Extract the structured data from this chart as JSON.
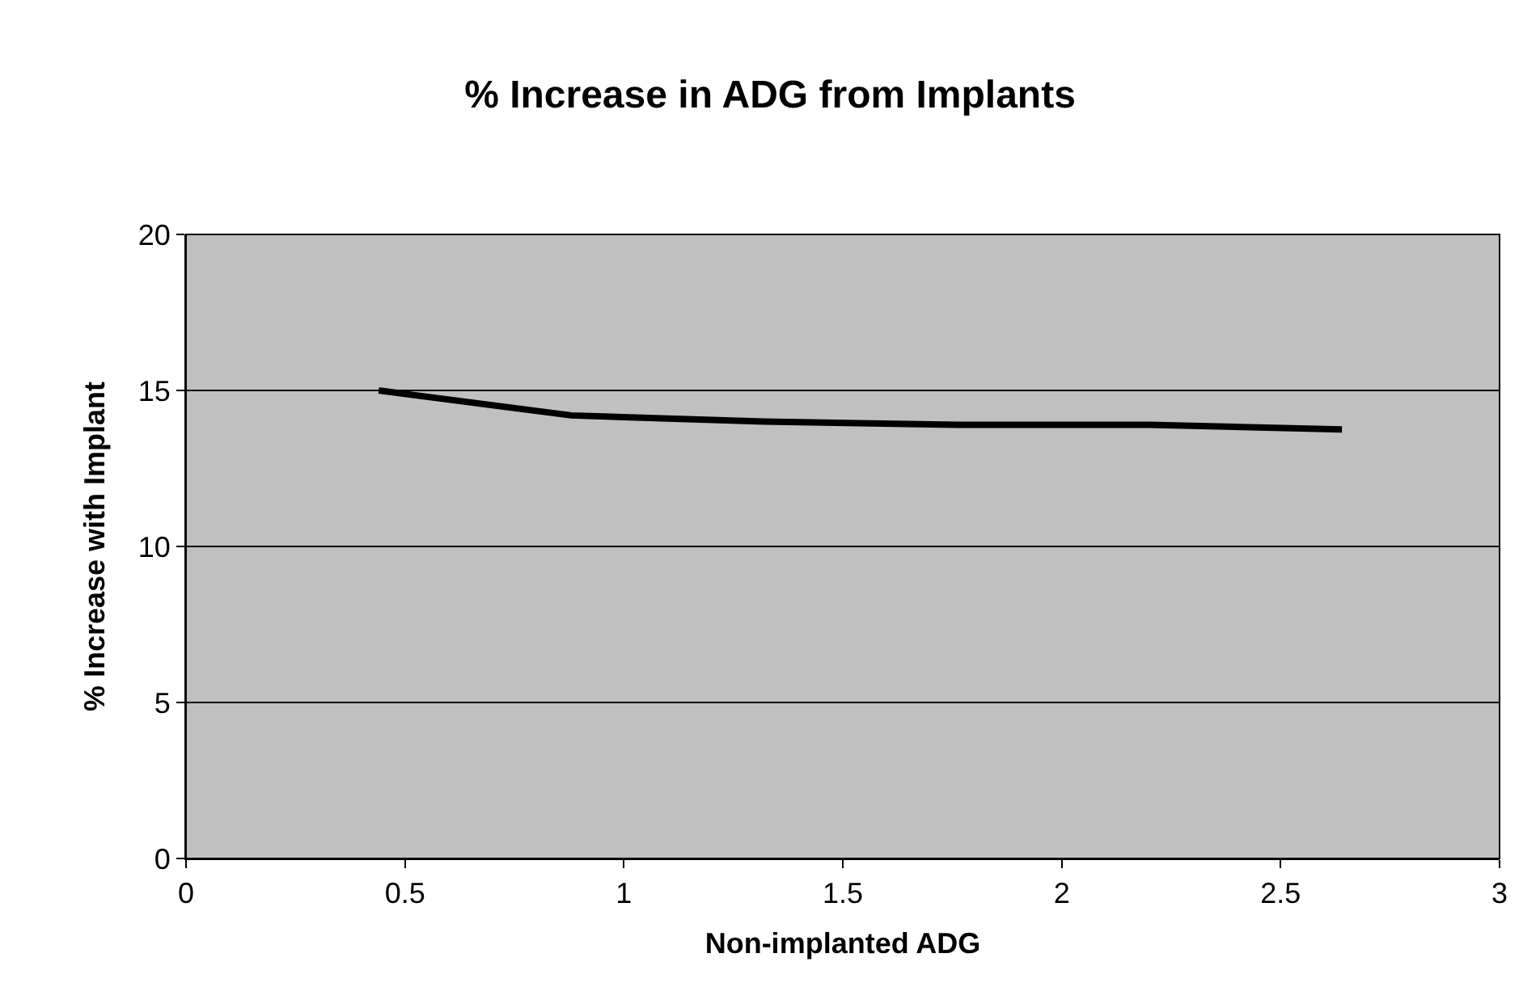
{
  "chart_data": {
    "type": "line",
    "title": "% Increase in ADG from Implants",
    "xlabel": "Non-implanted ADG",
    "ylabel": "% Increase with Implant",
    "x": [
      0.44,
      0.88,
      1.32,
      1.76,
      2.2,
      2.64
    ],
    "series": [
      {
        "color": "#000000",
        "values": [
          15.0,
          14.2,
          14.0,
          13.9,
          13.9,
          13.75
        ]
      }
    ],
    "xlim": [
      0,
      3
    ],
    "xticks": [
      0,
      0.5,
      1,
      1.5,
      2,
      2.5,
      3
    ],
    "ylim": [
      0,
      20
    ],
    "yticks": [
      0,
      5,
      10,
      15,
      20
    ],
    "grid": "y",
    "marker": "none",
    "line_style": "solid"
  }
}
